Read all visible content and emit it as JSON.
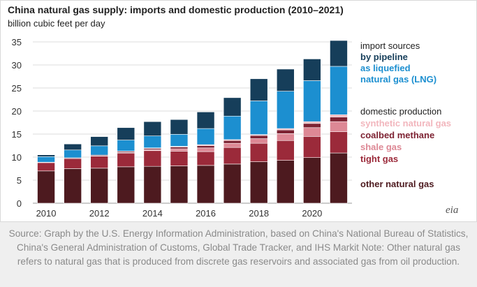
{
  "chart_data": {
    "type": "bar",
    "stacked": true,
    "title": "China natural gas supply: imports and domestic production (2010–2021)",
    "subtitle": "billion cubic feet per day",
    "categories": [
      2010,
      2011,
      2012,
      2013,
      2014,
      2015,
      2016,
      2017,
      2018,
      2019,
      2020,
      2021
    ],
    "x_ticks": [
      "2010",
      "2012",
      "2014",
      "2016",
      "2018",
      "2020"
    ],
    "y_ticks": [
      "0",
      "5",
      "10",
      "15",
      "20",
      "25",
      "30",
      "35"
    ],
    "ylim": [
      0,
      35
    ],
    "grid": true,
    "legend_position": "right",
    "legend": {
      "import_header": "import sources",
      "domestic_header": "domestic production"
    },
    "series": [
      {
        "name": "other natural gas",
        "color": "#4d1a1f",
        "values": [
          7.0,
          7.5,
          7.6,
          7.9,
          8.0,
          8.1,
          8.2,
          8.5,
          9.0,
          9.3,
          9.9,
          10.9
        ]
      },
      {
        "name": "tight gas",
        "color": "#9b2a3a",
        "values": [
          1.8,
          2.2,
          2.6,
          3.0,
          3.4,
          3.2,
          3.0,
          3.6,
          4.0,
          4.3,
          4.6,
          4.6
        ]
      },
      {
        "name": "shale gas",
        "color": "#dd8895",
        "values": [
          0.0,
          0.0,
          0.05,
          0.1,
          0.2,
          0.5,
          0.8,
          0.9,
          1.0,
          1.5,
          1.9,
          2.2
        ]
      },
      {
        "name": "coalbed methane",
        "color": "#7d2232",
        "values": [
          0.1,
          0.15,
          0.2,
          0.25,
          0.3,
          0.4,
          0.5,
          0.6,
          0.7,
          0.8,
          0.9,
          1.0
        ]
      },
      {
        "name": "synthetic natural gas",
        "color": "#f2b6bd",
        "values": [
          0.0,
          0.0,
          0.0,
          0.05,
          0.1,
          0.15,
          0.2,
          0.2,
          0.2,
          0.3,
          0.4,
          0.5
        ]
      },
      {
        "name": "as liquefied natural gas (LNG)",
        "color": "#1c8fd0",
        "values": [
          1.2,
          1.7,
          2.0,
          2.4,
          2.6,
          2.6,
          3.5,
          5.1,
          7.3,
          8.1,
          8.9,
          10.5
        ]
      },
      {
        "name": "by pipeline",
        "color": "#163e5a",
        "values": [
          0.4,
          1.3,
          2.0,
          2.7,
          3.1,
          3.2,
          3.6,
          4.0,
          4.8,
          4.8,
          4.7,
          5.6
        ]
      }
    ]
  },
  "logo_text": "eia",
  "source_text": "Source: Graph by the U.S. Energy Information Administration, based on China's National Bureau of Statistics, China's General Administration of Customs, Global Trade Tracker, and IHS Markit Note: Other natural gas refers to natural gas that is produced from discrete gas reservoirs and associated gas from oil production."
}
